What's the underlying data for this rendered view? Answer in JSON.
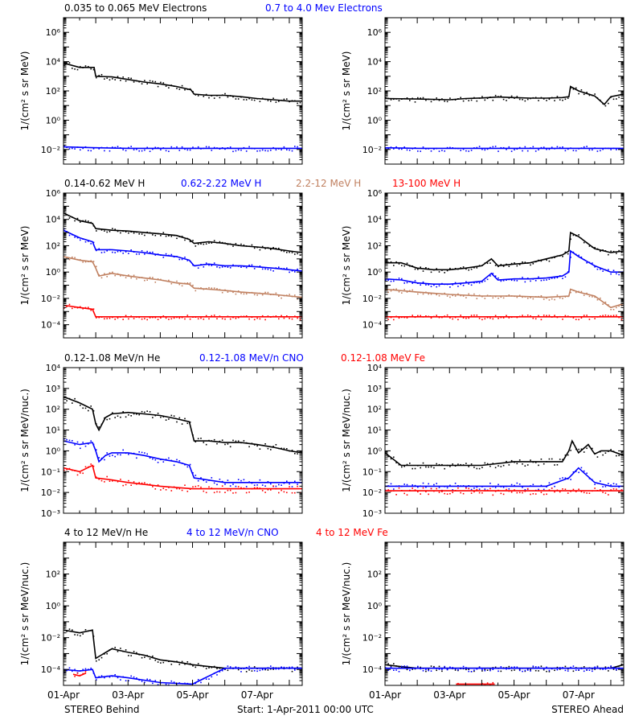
{
  "footer": {
    "left": "STEREO Behind",
    "center": "Start:  1-Apr-2011 00:00 UTC",
    "right": "STEREO Ahead"
  },
  "x_axis": {
    "range_days": [
      0,
      7.4
    ],
    "tick_labels": [
      "01-Apr",
      "03-Apr",
      "05-Apr",
      "07-Apr"
    ],
    "tick_days": [
      0,
      2,
      4,
      6
    ]
  },
  "rows": [
    {
      "ylabel": "1/(cm² s sr MeV)",
      "ylog_range": [
        -3,
        7
      ],
      "title_entries": [
        {
          "text": "0.035 to 0.065 MeV Electrons",
          "color": "#000000"
        },
        {
          "text": "0.7 to 4.0 Mev Electrons",
          "color": "#0000ff"
        }
      ],
      "ticks": [
        {
          "e": -2,
          "label": "10⁻²"
        },
        {
          "e": 0,
          "label": "10⁰"
        },
        {
          "e": 2,
          "label": "10²"
        },
        {
          "e": 4,
          "label": "10⁴"
        },
        {
          "e": 6,
          "label": "10⁶"
        }
      ]
    },
    {
      "ylabel": "1/(cm² s sr MeV)",
      "ylog_range": [
        -5,
        6
      ],
      "title_entries": [
        {
          "text": "0.14-0.62 MeV H",
          "color": "#000000"
        },
        {
          "text": "0.62-2.22 MeV H",
          "color": "#0000ff"
        },
        {
          "text": "2.2-12 MeV H",
          "color": "#c08060"
        },
        {
          "text": "13-100 MeV H",
          "color": "#ff0000"
        }
      ],
      "ticks": [
        {
          "e": -4,
          "label": "10⁻⁴"
        },
        {
          "e": -2,
          "label": "10⁻²"
        },
        {
          "e": 0,
          "label": "10⁰"
        },
        {
          "e": 2,
          "label": "10²"
        },
        {
          "e": 4,
          "label": "10⁴"
        },
        {
          "e": 6,
          "label": "10⁶"
        }
      ]
    },
    {
      "ylabel": "1/(cm² s sr MeV/nuc.)",
      "ylog_range": [
        -3,
        4
      ],
      "title_entries": [
        {
          "text": "0.12-1.08 MeV/n He",
          "color": "#000000"
        },
        {
          "text": "0.12-1.08 MeV/n CNO",
          "color": "#0000ff"
        },
        {
          "text": "0.12-1.08 MeV Fe",
          "color": "#ff0000"
        }
      ],
      "ticks": [
        {
          "e": -3,
          "label": "10⁻³"
        },
        {
          "e": -2,
          "label": "10⁻²"
        },
        {
          "e": -1,
          "label": "10⁻¹"
        },
        {
          "e": 0,
          "label": "10⁰"
        },
        {
          "e": 1,
          "label": "10¹"
        },
        {
          "e": 2,
          "label": "10²"
        },
        {
          "e": 3,
          "label": "10³"
        },
        {
          "e": 4,
          "label": "10⁴"
        }
      ]
    },
    {
      "ylabel": "1/(cm² s sr MeV/nuc.)",
      "ylog_range": [
        -5,
        4
      ],
      "title_entries": [
        {
          "text": "4 to 12 MeV/n He",
          "color": "#000000"
        },
        {
          "text": "4 to 12 MeV/n CNO",
          "color": "#0000ff"
        },
        {
          "text": "4 to 12 MeV Fe",
          "color": "#ff0000"
        }
      ],
      "ticks": [
        {
          "e": -4,
          "label": "10⁻⁴"
        },
        {
          "e": -2,
          "label": "10⁻²"
        },
        {
          "e": 0,
          "label": "10⁰"
        },
        {
          "e": 2,
          "label": "10²"
        }
      ]
    }
  ],
  "chart_data": [
    {
      "type": "scatter",
      "panel": "STEREO Behind",
      "row": 0,
      "ylog": true,
      "series": [
        {
          "name": "0.035 to 0.065 MeV Electrons",
          "color": "#000000",
          "x": [
            0,
            0.5,
            0.95,
            1.0,
            1.5,
            2.0,
            2.5,
            3.0,
            3.5,
            3.95,
            4.05,
            4.5,
            5.0,
            5.5,
            6.0,
            6.5,
            7.0,
            7.4
          ],
          "y": [
            8000.0,
            4000.0,
            4000.0,
            1000.0,
            900.0,
            600.0,
            400.0,
            300.0,
            200.0,
            120.0,
            60.0,
            50.0,
            50.0,
            40.0,
            30.0,
            25.0,
            20.0,
            20.0
          ]
        },
        {
          "name": "0.7 to 4.0 Mev Electrons",
          "color": "#0000ff",
          "x": [
            0,
            1,
            2,
            3,
            4,
            5,
            6,
            7,
            7.4
          ],
          "y": [
            0.015,
            0.013,
            0.012,
            0.012,
            0.012,
            0.012,
            0.012,
            0.012,
            0.012
          ]
        }
      ]
    },
    {
      "type": "scatter",
      "panel": "STEREO Ahead",
      "row": 0,
      "ylog": true,
      "series": [
        {
          "name": "0.035 to 0.065 MeV Electrons",
          "color": "#000000",
          "x": [
            0,
            1,
            2,
            2.5,
            3,
            3.5,
            4,
            4.5,
            5,
            5.5,
            5.7,
            5.75,
            6.0,
            6.5,
            6.8,
            7.0,
            7.4
          ],
          "y": [
            30,
            28,
            25,
            30,
            33,
            38,
            35,
            32,
            32,
            35,
            40,
            200,
            100,
            45,
            12,
            40,
            60
          ]
        },
        {
          "name": "0.7 to 4.0 Mev Electrons",
          "color": "#0000ff",
          "x": [
            0,
            1,
            2,
            3,
            4,
            5,
            6,
            7,
            7.4
          ],
          "y": [
            0.013,
            0.012,
            0.012,
            0.012,
            0.012,
            0.012,
            0.012,
            0.012,
            0.012
          ]
        }
      ]
    },
    {
      "type": "scatter",
      "panel": "STEREO Behind",
      "row": 1,
      "ylog": true,
      "series": [
        {
          "name": "0.14-0.62 MeV H",
          "color": "#000000",
          "x": [
            0,
            0.5,
            0.9,
            1.0,
            1.5,
            2.0,
            2.5,
            3.0,
            3.5,
            3.9,
            4.05,
            4.5,
            5.0,
            5.5,
            6.0,
            6.5,
            7.0,
            7.4
          ],
          "y": [
            30000.0,
            8000.0,
            5000.0,
            2000.0,
            1500.0,
            1300.0,
            1000.0,
            800.0,
            600.0,
            300.0,
            150.0,
            200.0,
            150.0,
            100.0,
            80.0,
            60.0,
            40.0,
            30.0
          ]
        },
        {
          "name": "0.62-2.22 MeV H",
          "color": "#0000ff",
          "x": [
            0,
            0.5,
            0.9,
            1.0,
            1.5,
            2.0,
            2.5,
            3.0,
            3.5,
            3.9,
            4.05,
            4.5,
            5.0,
            5.5,
            6.0,
            6.5,
            7.0,
            7.4
          ],
          "y": [
            1500.0,
            400.0,
            200.0,
            50.0,
            50.0,
            40.0,
            30.0,
            20.0,
            15.0,
            8,
            3,
            4,
            3,
            3,
            2.5,
            2,
            1.5,
            1.2
          ]
        },
        {
          "name": "2.2-12 MeV H",
          "color": "#c08060",
          "x": [
            0,
            0.5,
            0.9,
            1.0,
            1.1,
            1.5,
            2.0,
            2.5,
            3.0,
            3.5,
            3.9,
            4.05,
            4.5,
            5.0,
            5.5,
            6.0,
            6.5,
            7.0,
            7.4
          ],
          "y": [
            15,
            8,
            6,
            2,
            0.5,
            0.8,
            0.5,
            0.35,
            0.25,
            0.15,
            0.12,
            0.06,
            0.05,
            0.04,
            0.03,
            0.025,
            0.02,
            0.015,
            0.012
          ]
        },
        {
          "name": "13-100 MeV H",
          "color": "#ff0000",
          "x": [
            0,
            0.5,
            0.9,
            1.0,
            2,
            3,
            4,
            5,
            6,
            7,
            7.4
          ],
          "y": [
            0.003,
            0.002,
            0.0015,
            0.0004,
            0.0004,
            0.0004,
            0.0004,
            0.0004,
            0.0004,
            0.0004,
            0.0004
          ]
        }
      ]
    },
    {
      "type": "scatter",
      "panel": "STEREO Ahead",
      "row": 1,
      "ylog": true,
      "series": [
        {
          "name": "0.14-0.62 MeV H",
          "color": "#000000",
          "x": [
            0,
            0.5,
            1,
            1.5,
            2,
            2.5,
            3,
            3.3,
            3.5,
            4,
            4.5,
            5,
            5.5,
            5.7,
            5.75,
            6.0,
            6.5,
            7.0,
            7.4
          ],
          "y": [
            5,
            5,
            2,
            1.5,
            1.5,
            2,
            3,
            10,
            3,
            4,
            5,
            10,
            20,
            40,
            1000.0,
            500,
            60,
            30,
            40
          ]
        },
        {
          "name": "0.62-2.22 MeV H",
          "color": "#0000ff",
          "x": [
            0,
            0.5,
            1,
            1.5,
            2,
            2.5,
            3,
            3.3,
            3.5,
            4,
            4.5,
            5,
            5.5,
            5.7,
            5.75,
            6.0,
            6.5,
            7.0,
            7.4
          ],
          "y": [
            0.3,
            0.25,
            0.15,
            0.12,
            0.12,
            0.15,
            0.2,
            0.8,
            0.25,
            0.3,
            0.3,
            0.35,
            0.5,
            1,
            40,
            15,
            3,
            1,
            1
          ]
        },
        {
          "name": "2.2-12 MeV H",
          "color": "#c08060",
          "x": [
            0,
            1,
            2,
            3,
            4,
            5,
            5.7,
            5.75,
            6.0,
            6.5,
            7.0,
            7.4
          ],
          "y": [
            0.05,
            0.03,
            0.02,
            0.015,
            0.015,
            0.012,
            0.015,
            0.05,
            0.03,
            0.015,
            0.002,
            0.004
          ]
        },
        {
          "name": "13-100 MeV H",
          "color": "#ff0000",
          "x": [
            0,
            1,
            2,
            3,
            4,
            5,
            6,
            7,
            7.4
          ],
          "y": [
            0.0004,
            0.0004,
            0.0004,
            0.0004,
            0.0004,
            0.0004,
            0.0004,
            0.0004,
            0.0004
          ]
        }
      ]
    },
    {
      "type": "scatter",
      "panel": "STEREO Behind",
      "row": 2,
      "ylog": true,
      "series": [
        {
          "name": "0.12-1.08 MeV/n He",
          "color": "#000000",
          "x": [
            0,
            0.5,
            0.9,
            1.0,
            1.1,
            1.3,
            1.5,
            2.0,
            2.5,
            3.0,
            3.5,
            3.9,
            4.05,
            4.5,
            5.0,
            5.5,
            6.0,
            6.5,
            7.0,
            7.4
          ],
          "y": [
            400,
            200,
            100,
            20,
            10,
            40,
            60,
            70,
            60,
            50,
            35,
            25,
            3,
            3,
            2.5,
            2.5,
            2,
            1.5,
            1,
            0.8
          ]
        },
        {
          "name": "0.12-1.08 MeV/n CNO",
          "color": "#0000ff",
          "x": [
            0,
            0.5,
            0.9,
            1.0,
            1.1,
            1.3,
            1.5,
            2.0,
            2.5,
            3.0,
            3.5,
            3.9,
            4.05,
            5,
            6,
            7,
            7.4
          ],
          "y": [
            3,
            2,
            2.5,
            1,
            0.3,
            0.6,
            0.8,
            0.8,
            0.6,
            0.4,
            0.3,
            0.2,
            0.05,
            0.03,
            0.03,
            0.03,
            0.03
          ]
        },
        {
          "name": "0.12-1.08 MeV Fe",
          "color": "#ff0000",
          "x": [
            0,
            0.5,
            0.9,
            1.0,
            1.5,
            2,
            3,
            4,
            5,
            6,
            7,
            7.4
          ],
          "y": [
            0.15,
            0.1,
            0.2,
            0.05,
            0.04,
            0.03,
            0.02,
            0.015,
            0.015,
            0.015,
            0.015,
            0.015
          ]
        }
      ]
    },
    {
      "type": "scatter",
      "panel": "STEREO Ahead",
      "row": 2,
      "ylog": true,
      "series": [
        {
          "name": "0.12-1.08 MeV/n He",
          "color": "#000000",
          "x": [
            0,
            0.5,
            1,
            2,
            3,
            4,
            5,
            5.5,
            5.7,
            5.8,
            6.0,
            6.3,
            6.5,
            6.7,
            7.0,
            7.4
          ],
          "y": [
            0.8,
            0.2,
            0.2,
            0.2,
            0.2,
            0.3,
            0.3,
            0.3,
            1,
            3,
            0.8,
            2,
            0.7,
            1,
            1,
            0.6
          ]
        },
        {
          "name": "0.12-1.08 MeV/n CNO",
          "color": "#0000ff",
          "x": [
            0,
            1,
            2,
            3,
            4,
            5,
            5.7,
            6.0,
            6.5,
            7.0,
            7.4
          ],
          "y": [
            0.02,
            0.02,
            0.02,
            0.02,
            0.02,
            0.02,
            0.05,
            0.15,
            0.03,
            0.02,
            0.02
          ]
        },
        {
          "name": "0.12-1.08 MeV Fe",
          "color": "#ff0000",
          "x": [
            0,
            1,
            2,
            3,
            4,
            5,
            6,
            7,
            7.4
          ],
          "y": [
            0.012,
            0.012,
            0.012,
            0.012,
            0.012,
            0.012,
            0.012,
            0.012,
            0.012
          ]
        }
      ]
    },
    {
      "type": "scatter",
      "panel": "STEREO Behind",
      "row": 3,
      "ylog": true,
      "series": [
        {
          "name": "4 to 12 MeV/n He",
          "color": "#000000",
          "x": [
            0,
            0.5,
            0.9,
            1.0,
            1.5,
            2.0,
            2.5,
            3.0,
            3.5,
            4.0,
            5.0,
            6.0,
            7.0,
            7.4
          ],
          "y": [
            0.03,
            0.02,
            0.03,
            0.0005,
            0.002,
            0.0012,
            0.0008,
            0.0004,
            0.0003,
            0.0002,
            0.00012,
            0.00012,
            0.00012,
            0.00012
          ]
        },
        {
          "name": "4 to 12 MeV/n CNO",
          "color": "#0000ff",
          "x": [
            0,
            0.5,
            0.9,
            1.0,
            1.5,
            2.0,
            3.0,
            4.0,
            5.0,
            6.0,
            7.0,
            7.4
          ],
          "y": [
            0.0001,
            8e-05,
            0.0001,
            3e-05,
            4e-05,
            3e-05,
            1.5e-05,
            1.2e-05,
            0.00012,
            0.00012,
            0.00012,
            0.00012
          ]
        },
        {
          "name": "4 to 12 MeV Fe",
          "color": "#ff0000",
          "x": [
            0.3,
            0.5,
            0.7
          ],
          "y": [
            5e-05,
            4e-05,
            6e-05
          ]
        }
      ]
    },
    {
      "type": "scatter",
      "panel": "STEREO Ahead",
      "row": 3,
      "ylog": true,
      "series": [
        {
          "name": "4 to 12 MeV/n He",
          "color": "#000000",
          "x": [
            0,
            0.5,
            1.0,
            2.0,
            3.0,
            4.0,
            5.0,
            6.0,
            7.0,
            7.4
          ],
          "y": [
            0.0002,
            0.00015,
            0.00012,
            0.00012,
            0.00012,
            0.00012,
            0.00012,
            0.00012,
            0.00012,
            0.0002
          ]
        },
        {
          "name": "4 to 12 MeV/n CNO",
          "color": "#0000ff",
          "x": [
            0,
            1,
            2,
            3,
            4,
            5,
            6,
            7,
            7.4
          ],
          "y": [
            0.00012,
            0.00012,
            0.00012,
            0.00012,
            0.00012,
            0.00012,
            0.00012,
            0.00012,
            0.00012
          ]
        },
        {
          "name": "4 to 12 MeV Fe",
          "color": "#ff0000",
          "x": [
            2.2,
            3.4
          ],
          "y": [
            1.2e-05,
            1.2e-05
          ]
        }
      ]
    }
  ]
}
